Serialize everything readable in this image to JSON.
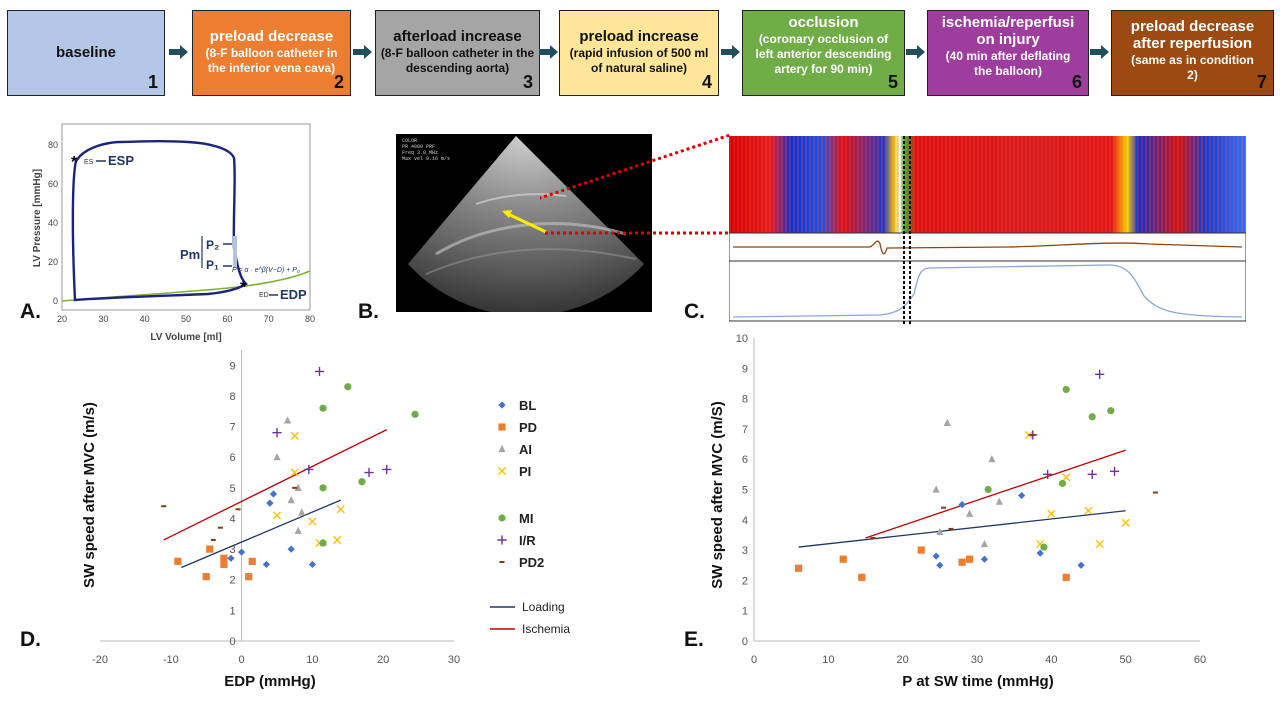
{
  "steps": [
    {
      "title": "baseline",
      "subtitle": "",
      "num": "1",
      "color": "#b4c7e7",
      "text_color": "#111111"
    },
    {
      "title": "preload decrease",
      "subtitle": "(8-F balloon catheter in the inferior vena cava)",
      "num": "2",
      "color": "#ed7d31",
      "text_color": "#ffffff"
    },
    {
      "title": "afterload increase",
      "subtitle": "(8-F balloon catheter in the descending aorta)",
      "num": "3",
      "color": "#a5a5a5",
      "text_color": "#111111"
    },
    {
      "title": "preload increase",
      "subtitle": "(rapid infusion of 500 ml of natural saline)",
      "num": "4",
      "color": "#ffe699",
      "text_color": "#111111"
    },
    {
      "title": "occlusion",
      "subtitle": "(coronary occlusion of left anterior descending artery for 90 min)",
      "num": "5",
      "color": "#70ad47",
      "text_color": "#ffffff"
    },
    {
      "title": "ischemia/reperfusi on injury",
      "subtitle": "(40 min after deflating the balloon)",
      "num": "6",
      "color": "#9e3d9e",
      "text_color": "#ffffff"
    },
    {
      "title": "preload decrease after reperfusion",
      "subtitle": "(same as in condition 2)",
      "num": "7",
      "color": "#9c4a12",
      "text_color": "#ffffff"
    }
  ],
  "panels": {
    "a": "A.",
    "b": "B.",
    "c": "C.",
    "d": "D.",
    "e": "E."
  },
  "pv_loop": {
    "xlabel": "LV Volume [ml]",
    "ylabel": "LV Pressure [mmHg]",
    "xticks": [
      "20",
      "30",
      "40",
      "50",
      "60",
      "70",
      "80"
    ],
    "yticks": [
      "0",
      "20",
      "40",
      "60",
      "80"
    ],
    "es": "ES",
    "esp": "ESP",
    "ed": "ED",
    "edp": "EDP",
    "pm": "Pm",
    "p2": "P₂",
    "p1": "P₁",
    "formula": "P = α · e^β(V−D) + P₀"
  },
  "ultrasound": {
    "overlay_lines": [
      "COLOR",
      "PR 4000 PRF",
      "Freq 3.0 MHz",
      "Max vel 0.16 m/s"
    ]
  },
  "chart_data": [
    {
      "type": "scatter",
      "panel": "D",
      "xlabel": "EDP (mmHg)",
      "ylabel": "SW speed after MVC (m/s)",
      "xlim": [
        -20,
        30
      ],
      "ylim": [
        0,
        9.5
      ],
      "xticks": [
        -20,
        -10,
        0,
        10,
        20,
        30
      ],
      "yticks": [
        0,
        1,
        2,
        3,
        4,
        5,
        6,
        7,
        8,
        9
      ],
      "series": [
        {
          "name": "BL",
          "color": "#4472c4",
          "marker": "diamond",
          "points": [
            [
              -1.5,
              2.7
            ],
            [
              0,
              2.9
            ],
            [
              3.5,
              2.5
            ],
            [
              4,
              4.5
            ],
            [
              4.5,
              4.8
            ],
            [
              7,
              3
            ],
            [
              10,
              2.5
            ]
          ]
        },
        {
          "name": "PD",
          "color": "#ed7d31",
          "marker": "square",
          "points": [
            [
              -9,
              2.6
            ],
            [
              -5,
              2.1
            ],
            [
              -4.5,
              3
            ],
            [
              -2.5,
              2.5
            ],
            [
              -2.5,
              2.7
            ],
            [
              1,
              2.1
            ],
            [
              1.5,
              2.6
            ]
          ]
        },
        {
          "name": "AI",
          "color": "#a5a5a5",
          "marker": "triangle",
          "points": [
            [
              5,
              6
            ],
            [
              6.5,
              7.2
            ],
            [
              7,
              4.6
            ],
            [
              8,
              3.6
            ],
            [
              8,
              5
            ],
            [
              8.5,
              4.2
            ],
            [
              11.5,
              3.2
            ]
          ]
        },
        {
          "name": "PI",
          "color": "#ffc000",
          "marker": "x",
          "points": [
            [
              5,
              4.1
            ],
            [
              7.5,
              5.5
            ],
            [
              7.5,
              6.7
            ],
            [
              10,
              3.9
            ],
            [
              11,
              3.2
            ],
            [
              13.5,
              3.3
            ],
            [
              14,
              4.3
            ]
          ]
        },
        {
          "name": "MI",
          "color": "#70ad47",
          "marker": "circle",
          "points": [
            [
              11.5,
              7.6
            ],
            [
              11.5,
              5
            ],
            [
              11.5,
              3.2
            ],
            [
              15,
              8.3
            ],
            [
              17,
              5.2
            ],
            [
              24.5,
              7.4
            ]
          ]
        },
        {
          "name": "I/R",
          "color": "#7030a0",
          "marker": "plus",
          "points": [
            [
              5,
              6.8
            ],
            [
              9.5,
              5.6
            ],
            [
              11,
              8.8
            ],
            [
              18,
              5.5
            ],
            [
              20.5,
              5.6
            ]
          ]
        },
        {
          "name": "PD2",
          "color": "#843c0c",
          "marker": "dash",
          "points": [
            [
              -11,
              4.4
            ],
            [
              -4,
              3.3
            ],
            [
              -3,
              3.7
            ],
            [
              -0.5,
              4.3
            ],
            [
              7.5,
              5
            ]
          ]
        }
      ],
      "trendlines": [
        {
          "name": "Loading",
          "color": "#1f3864",
          "from": [
            -8.5,
            2.4
          ],
          "to": [
            14,
            4.6
          ]
        },
        {
          "name": "Ischemia",
          "color": "#c00000",
          "from": [
            -11,
            3.3
          ],
          "to": [
            20.5,
            6.9
          ]
        }
      ]
    },
    {
      "type": "scatter",
      "panel": "E",
      "xlabel": "P at SW time (mmHg)",
      "ylabel": "SW speed after MVC (m/S)",
      "xlim": [
        0,
        60
      ],
      "ylim": [
        0,
        10
      ],
      "xticks": [
        0,
        10,
        20,
        30,
        40,
        50,
        60
      ],
      "yticks": [
        0,
        1,
        2,
        3,
        4,
        5,
        6,
        7,
        8,
        9,
        10
      ],
      "series": [
        {
          "name": "BL",
          "color": "#4472c4",
          "marker": "diamond",
          "points": [
            [
              24.5,
              2.8
            ],
            [
              25,
              2.5
            ],
            [
              28,
              4.5
            ],
            [
              31,
              2.7
            ],
            [
              36,
              4.8
            ],
            [
              38.5,
              2.9
            ],
            [
              44,
              2.5
            ]
          ]
        },
        {
          "name": "PD",
          "color": "#ed7d31",
          "marker": "square",
          "points": [
            [
              6,
              2.4
            ],
            [
              12,
              2.7
            ],
            [
              14.5,
              2.1
            ],
            [
              22.5,
              3
            ],
            [
              28,
              2.6
            ],
            [
              29,
              2.7
            ],
            [
              42,
              2.1
            ]
          ]
        },
        {
          "name": "AI",
          "color": "#a5a5a5",
          "marker": "triangle",
          "points": [
            [
              24.5,
              5
            ],
            [
              25,
              3.6
            ],
            [
              26,
              7.2
            ],
            [
              29,
              4.2
            ],
            [
              31,
              3.2
            ],
            [
              32,
              6
            ],
            [
              33,
              4.6
            ]
          ]
        },
        {
          "name": "PI",
          "color": "#ffc000",
          "marker": "x",
          "points": [
            [
              37,
              6.8
            ],
            [
              38.5,
              3.2
            ],
            [
              40,
              4.2
            ],
            [
              42,
              5.4
            ],
            [
              45,
              4.3
            ],
            [
              46.5,
              3.2
            ],
            [
              50,
              3.9
            ]
          ]
        },
        {
          "name": "MI",
          "color": "#70ad47",
          "marker": "circle",
          "points": [
            [
              31.5,
              5
            ],
            [
              39,
              3.1
            ],
            [
              41.5,
              5.2
            ],
            [
              42,
              8.3
            ],
            [
              45.5,
              7.4
            ],
            [
              48,
              7.6
            ]
          ]
        },
        {
          "name": "I/R",
          "color": "#7030a0",
          "marker": "plus",
          "points": [
            [
              37.5,
              6.8
            ],
            [
              39.5,
              5.5
            ],
            [
              45.5,
              5.5
            ],
            [
              46.5,
              8.8
            ],
            [
              48.5,
              5.6
            ]
          ]
        },
        {
          "name": "PD2",
          "color": "#843c0c",
          "marker": "dash",
          "points": [
            [
              16,
              3.4
            ],
            [
              25.5,
              4.4
            ],
            [
              26.5,
              3.7
            ],
            [
              37.5,
              6.8
            ],
            [
              54,
              4.9
            ]
          ]
        }
      ],
      "trendlines": [
        {
          "name": "Loading",
          "color": "#1f3864",
          "from": [
            6,
            3.1
          ],
          "to": [
            50,
            4.3
          ]
        },
        {
          "name": "Ischemia",
          "color": "#c00000",
          "from": [
            15,
            3.4
          ],
          "to": [
            50,
            6.3
          ]
        }
      ]
    }
  ]
}
